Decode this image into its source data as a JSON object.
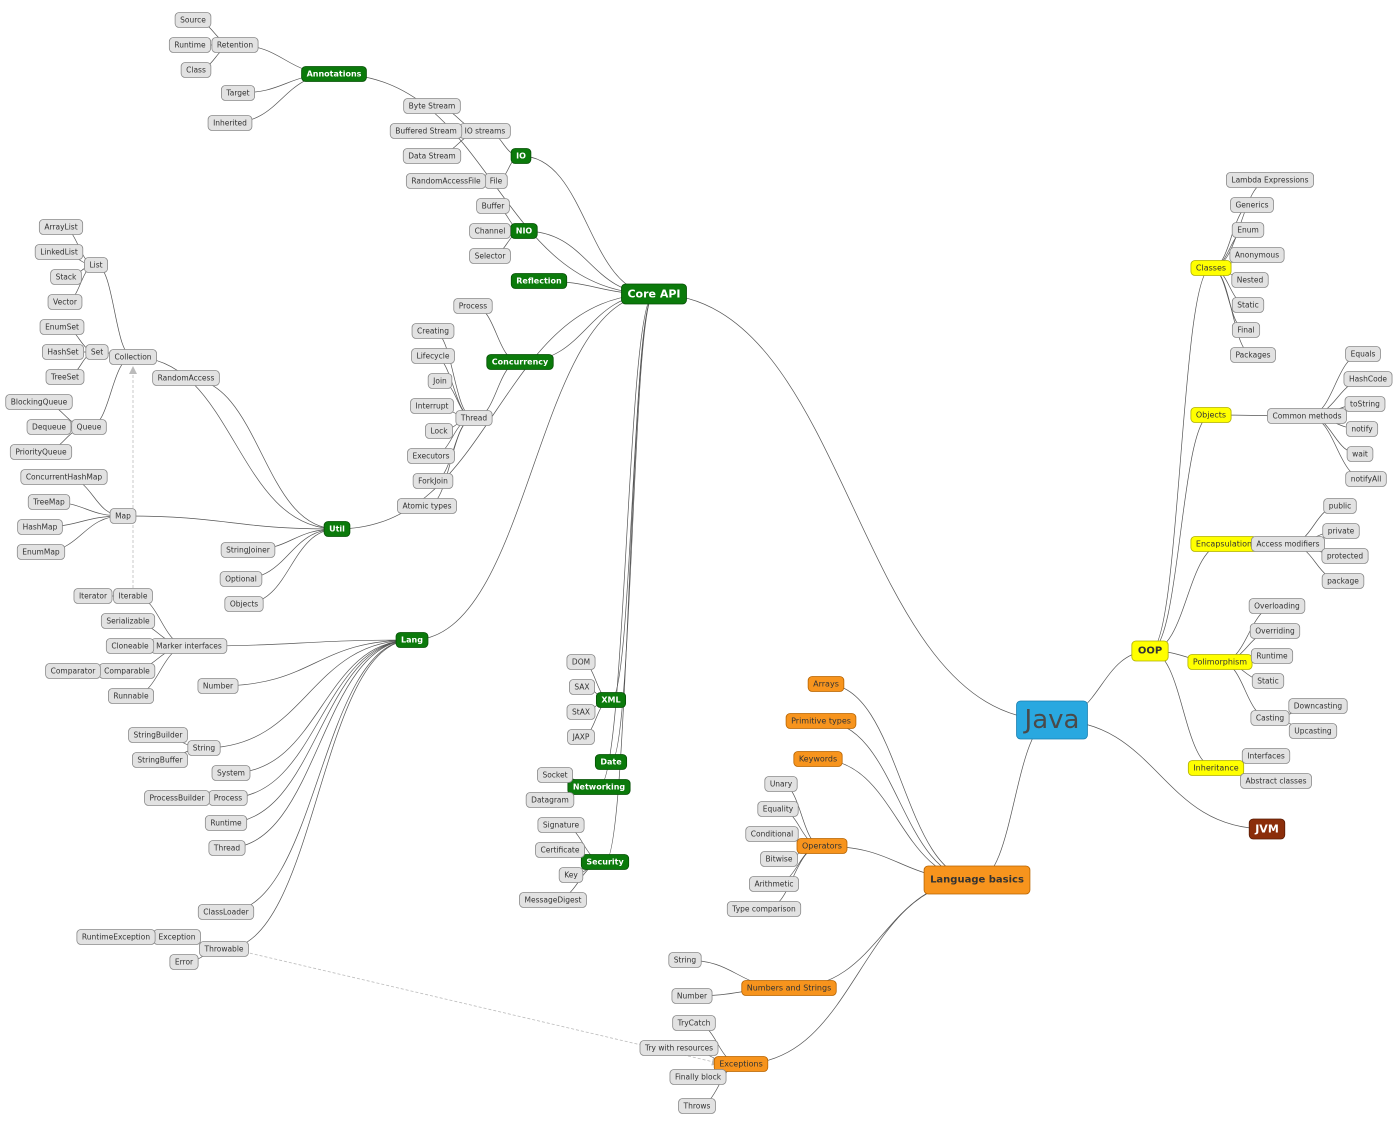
{
  "root": {
    "label": "Java",
    "children": [
      {
        "label": "Core API",
        "children": [
          {
            "label": "Annotations",
            "children": [
              {
                "label": "Retention",
                "children": [
                  {
                    "label": "Source"
                  },
                  {
                    "label": "Runtime"
                  },
                  {
                    "label": "Class"
                  }
                ]
              },
              {
                "label": "Target"
              },
              {
                "label": "Inherited"
              }
            ]
          },
          {
            "label": "IO",
            "children": [
              {
                "label": "IO streams",
                "children": [
                  {
                    "label": "Byte Stream"
                  },
                  {
                    "label": "Buffered Stream"
                  },
                  {
                    "label": "Data Stream"
                  }
                ]
              },
              {
                "label": "File",
                "children": [
                  {
                    "label": "RandomAccessFile"
                  }
                ]
              }
            ]
          },
          {
            "label": "NIO",
            "children": [
              {
                "label": "Buffer"
              },
              {
                "label": "Channel"
              },
              {
                "label": "Selector"
              }
            ]
          },
          {
            "label": "Reflection"
          },
          {
            "label": "Concurrency",
            "children": [
              {
                "label": "Process"
              },
              {
                "label": "Thread",
                "children": [
                  {
                    "label": "Creating"
                  },
                  {
                    "label": "Lifecycle"
                  },
                  {
                    "label": "Join"
                  },
                  {
                    "label": "Interrupt"
                  },
                  {
                    "label": "Lock"
                  },
                  {
                    "label": "Executors"
                  },
                  {
                    "label": "ForkJoin"
                  },
                  {
                    "label": "Atomic types"
                  }
                ]
              }
            ]
          },
          {
            "label": "Util",
            "children": [
              {
                "label": "Collection",
                "children": [
                  {
                    "label": "List",
                    "children": [
                      {
                        "label": "ArrayList"
                      },
                      {
                        "label": "LinkedList"
                      },
                      {
                        "label": "Stack"
                      },
                      {
                        "label": "Vector"
                      }
                    ]
                  },
                  {
                    "label": "Set",
                    "children": [
                      {
                        "label": "EnumSet"
                      },
                      {
                        "label": "HashSet"
                      },
                      {
                        "label": "TreeSet"
                      }
                    ]
                  },
                  {
                    "label": "Queue",
                    "children": [
                      {
                        "label": "BlockingQueue"
                      },
                      {
                        "label": "Dequeue"
                      },
                      {
                        "label": "PriorityQueue"
                      }
                    ]
                  }
                ]
              },
              {
                "label": "RandomAccess"
              },
              {
                "label": "Map",
                "children": [
                  {
                    "label": "ConcurrentHashMap"
                  },
                  {
                    "label": "TreeMap"
                  },
                  {
                    "label": "HashMap"
                  },
                  {
                    "label": "EnumMap"
                  }
                ]
              },
              {
                "label": "StringJoiner"
              },
              {
                "label": "Optional"
              },
              {
                "label": "Objects"
              }
            ]
          },
          {
            "label": "Lang",
            "children": [
              {
                "label": "Marker interfaces",
                "children": [
                  {
                    "label": "Iterable",
                    "children": [
                      {
                        "label": "Iterator"
                      }
                    ]
                  },
                  {
                    "label": "Serializable"
                  },
                  {
                    "label": "Cloneable"
                  },
                  {
                    "label": "Comparable",
                    "children": [
                      {
                        "label": "Comparator"
                      }
                    ]
                  },
                  {
                    "label": "Runnable"
                  }
                ]
              },
              {
                "label": "Number"
              },
              {
                "label": "String",
                "children": [
                  {
                    "label": "StringBuilder"
                  },
                  {
                    "label": "StringBuffer"
                  }
                ]
              },
              {
                "label": "System"
              },
              {
                "label": "Process",
                "children": [
                  {
                    "label": "ProcessBuilder"
                  }
                ]
              },
              {
                "label": "Runtime"
              },
              {
                "label": "Thread"
              },
              {
                "label": "ClassLoader"
              },
              {
                "label": "Throwable",
                "children": [
                  {
                    "label": "Exception",
                    "children": [
                      {
                        "label": "RuntimeException"
                      }
                    ]
                  },
                  {
                    "label": "Error"
                  }
                ]
              }
            ]
          },
          {
            "label": "XML",
            "children": [
              {
                "label": "DOM"
              },
              {
                "label": "SAX"
              },
              {
                "label": "StAX"
              },
              {
                "label": "JAXP"
              }
            ]
          },
          {
            "label": "Date"
          },
          {
            "label": "Networking",
            "children": [
              {
                "label": "Socket"
              },
              {
                "label": "Datagram"
              }
            ]
          },
          {
            "label": "Security",
            "children": [
              {
                "label": "Signature"
              },
              {
                "label": "Certificate"
              },
              {
                "label": "Key"
              },
              {
                "label": "MessageDigest"
              }
            ]
          }
        ]
      },
      {
        "label": "OOP",
        "children": [
          {
            "label": "Classes",
            "children": [
              {
                "label": "Lambda Expressions"
              },
              {
                "label": "Generics"
              },
              {
                "label": "Enum"
              },
              {
                "label": "Anonymous"
              },
              {
                "label": "Nested"
              },
              {
                "label": "Static"
              },
              {
                "label": "Final"
              },
              {
                "label": "Packages"
              }
            ]
          },
          {
            "label": "Objects",
            "children": [
              {
                "label": "Common methods",
                "children": [
                  {
                    "label": "Equals"
                  },
                  {
                    "label": "HashCode"
                  },
                  {
                    "label": "toString"
                  },
                  {
                    "label": "notify"
                  },
                  {
                    "label": "wait"
                  },
                  {
                    "label": "notifyAll"
                  }
                ]
              }
            ]
          },
          {
            "label": "Encapsulation",
            "children": [
              {
                "label": "Access modifiers",
                "children": [
                  {
                    "label": "public"
                  },
                  {
                    "label": "private"
                  },
                  {
                    "label": "protected"
                  },
                  {
                    "label": "package"
                  }
                ]
              }
            ]
          },
          {
            "label": "Polimorphism",
            "children": [
              {
                "label": "Overloading"
              },
              {
                "label": "Overriding"
              },
              {
                "label": "Runtime"
              },
              {
                "label": "Static"
              },
              {
                "label": "Casting",
                "children": [
                  {
                    "label": "Downcasting"
                  },
                  {
                    "label": "Upcasting"
                  }
                ]
              }
            ]
          },
          {
            "label": "Inheritance",
            "children": [
              {
                "label": "Interfaces"
              },
              {
                "label": "Abstract classes"
              }
            ]
          }
        ]
      },
      {
        "label": "JVM"
      },
      {
        "label": "Language basics",
        "children": [
          {
            "label": "Arrays"
          },
          {
            "label": "Primitive types"
          },
          {
            "label": "Keywords"
          },
          {
            "label": "Operators",
            "children": [
              {
                "label": "Unary"
              },
              {
                "label": "Equality"
              },
              {
                "label": "Conditional"
              },
              {
                "label": "Bitwise"
              },
              {
                "label": "Arithmetic"
              },
              {
                "label": "Type comparison"
              }
            ]
          },
          {
            "label": "Numbers and Strings",
            "children": [
              {
                "label": "String"
              },
              {
                "label": "Number"
              }
            ]
          },
          {
            "label": "Exceptions",
            "children": [
              {
                "label": "TryCatch"
              },
              {
                "label": "Try with resources"
              },
              {
                "label": "Finally block"
              },
              {
                "label": "Throws"
              }
            ]
          }
        ]
      }
    ]
  }
}
